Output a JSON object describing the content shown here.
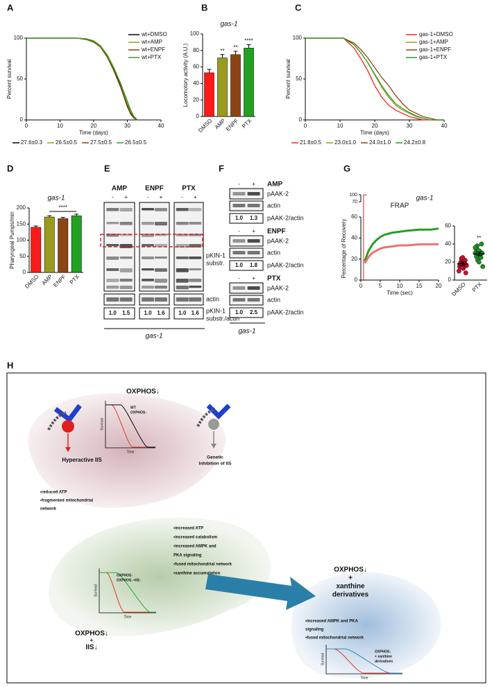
{
  "panel_letters": [
    "A",
    "B",
    "C",
    "D",
    "E",
    "F",
    "G",
    "H"
  ],
  "chart_data": [
    {
      "type": "line",
      "xlabel": "Time (days)",
      "ylabel": "Percent survival",
      "x": [
        0,
        15,
        18,
        20,
        22,
        24,
        26,
        28,
        30,
        31,
        32,
        33
      ],
      "xlim": [
        0,
        40
      ],
      "xticks": [
        0,
        10,
        20,
        30,
        40
      ],
      "ylim": [
        0,
        100
      ],
      "yticks": [
        0,
        50,
        100
      ],
      "legend": "upper right",
      "series": [
        {
          "name": "wt+DMSO",
          "color": "#000000",
          "values": [
            100,
            100,
            99,
            96,
            90,
            78,
            62,
            42,
            18,
            8,
            3,
            0
          ]
        },
        {
          "name": "wt+AMP",
          "color": "#9a9a1e",
          "values": [
            100,
            100,
            99,
            97,
            91,
            80,
            64,
            44,
            20,
            10,
            4,
            0
          ]
        },
        {
          "name": "wt+ENPF",
          "color": "#8b4513",
          "values": [
            100,
            100,
            98,
            95,
            89,
            77,
            60,
            40,
            16,
            7,
            2,
            0
          ]
        },
        {
          "name": "wt+PTX",
          "color": "#2ca02c",
          "values": [
            100,
            100,
            99,
            96,
            90,
            79,
            63,
            45,
            23,
            12,
            4,
            0
          ]
        }
      ],
      "annotations": [
        "27.6±0.3",
        "26.5±0.5",
        "27.5±0.5",
        "26.5±0.5"
      ]
    },
    {
      "type": "bar",
      "title": "gas-1",
      "ylabel": "Locomotory activity (A.U.)",
      "categories": [
        "DMSO",
        "AMP",
        "ENPF",
        "PTX"
      ],
      "values": [
        53,
        71,
        75,
        83
      ],
      "errors": [
        4,
        4,
        4,
        4
      ],
      "colors": [
        "#ff1a1a",
        "#9a9a1e",
        "#8b4513",
        "#22a022"
      ],
      "significance": [
        null,
        "**",
        "**",
        "****"
      ],
      "ylim": [
        0,
        100
      ],
      "yticks": [
        0,
        20,
        40,
        60,
        80,
        100
      ]
    },
    {
      "type": "line",
      "xlabel": "Time (days)",
      "ylabel": "Percent survival",
      "x": [
        0,
        11,
        14,
        16,
        18,
        20,
        22,
        24,
        26,
        28,
        30,
        32,
        34,
        36,
        38,
        40
      ],
      "xlim": [
        0,
        40
      ],
      "xticks": [
        0,
        10,
        20,
        30,
        40
      ],
      "ylim": [
        0,
        100
      ],
      "yticks": [
        0,
        50,
        100
      ],
      "legend": "upper right",
      "series": [
        {
          "name": "gas-1+DMSO",
          "color": "#ff2020",
          "values": [
            100,
            100,
            88,
            75,
            60,
            42,
            28,
            18,
            12,
            8,
            4,
            2,
            0,
            0,
            0,
            0
          ]
        },
        {
          "name": "gas-1+AMP",
          "color": "#9a9a1e",
          "values": [
            100,
            100,
            92,
            82,
            70,
            55,
            40,
            28,
            18,
            12,
            8,
            4,
            2,
            0,
            0,
            0
          ]
        },
        {
          "name": "gas-1+ENPF",
          "color": "#8b4513",
          "values": [
            100,
            100,
            94,
            86,
            76,
            64,
            52,
            42,
            30,
            20,
            12,
            8,
            4,
            2,
            0,
            0
          ]
        },
        {
          "name": "gas-1+PTX",
          "color": "#22a022",
          "values": [
            100,
            100,
            92,
            82,
            70,
            56,
            42,
            30,
            20,
            14,
            9,
            5,
            2,
            0,
            0,
            0
          ]
        }
      ],
      "annotations": [
        "21.8±0.5",
        "23.0±1.0",
        "24.0±1.0",
        "24.2±0.8"
      ]
    },
    {
      "type": "bar",
      "title": "gas-1",
      "ylabel": "Pharyngeal Pumps/min",
      "categories": [
        "DMSO",
        "AMP",
        "ENPF",
        "PTX"
      ],
      "values": [
        140,
        172,
        167,
        176
      ],
      "errors": [
        4,
        4,
        4,
        5
      ],
      "colors": [
        "#ff1a1a",
        "#9a9a1e",
        "#8b4513",
        "#22a022"
      ],
      "significance": "****",
      "ylim": [
        0,
        200
      ],
      "yticks": [
        0,
        50,
        100,
        150,
        200
      ]
    },
    {
      "type": "line",
      "title": "FRAP",
      "xlabel": "Time (sec)",
      "ylabel": "Percentage of Recovery",
      "x": [
        1,
        2,
        3,
        4,
        5,
        6,
        8,
        10,
        12,
        15,
        18,
        20
      ],
      "xlim": [
        0,
        20
      ],
      "xticks": [
        0,
        5,
        10,
        15,
        20
      ],
      "ylim": [
        0,
        60
      ],
      "yticks": [
        0,
        20,
        40,
        60
      ],
      "ybreak_ticks": [
        70,
        100
      ],
      "series": [
        {
          "color": "#22a022",
          "values": [
            18,
            28,
            34,
            38,
            41,
            43,
            45,
            46,
            47,
            48,
            48,
            49
          ]
        },
        {
          "color": "#f07070",
          "values": [
            16,
            22,
            26,
            28,
            30,
            31,
            32,
            33,
            33,
            34,
            34,
            34
          ]
        }
      ]
    },
    {
      "type": "dot",
      "categories": [
        "DMSO",
        "PTX"
      ],
      "colors": [
        "#c8102e",
        "#1f8f2a"
      ],
      "points": [
        [
          10,
          13,
          15,
          17,
          18,
          19,
          20,
          22,
          24,
          8,
          14,
          16,
          25
        ],
        [
          30,
          32,
          35,
          28,
          26,
          25,
          38,
          40,
          22,
          30,
          33,
          15,
          20,
          36
        ]
      ],
      "means": [
        18,
        29
      ],
      "sems": [
        2,
        2
      ],
      "significance": [
        null,
        "**"
      ],
      "ylim": [
        0,
        60
      ],
      "yticks": [
        0,
        20,
        40,
        60
      ]
    }
  ],
  "panel_g_title": "gas-1",
  "blot_e": {
    "groups": [
      {
        "name": "AMP",
        "lanes": [
          "-",
          "+"
        ],
        "ratios": [
          "1.0",
          "1.5"
        ]
      },
      {
        "name": "ENPF",
        "lanes": [
          "-",
          "+"
        ],
        "ratios": [
          "1.0",
          "1.6"
        ]
      },
      {
        "name": "PTX",
        "lanes": [
          "-",
          "+"
        ],
        "ratios": [
          "1.0",
          "1.6"
        ]
      }
    ],
    "labels": {
      "band": [
        "pKIN-1",
        "substr."
      ],
      "actin": "actin",
      "ratio": [
        "pKIN-1",
        "substr./actin"
      ]
    },
    "strain": "gas-1"
  },
  "blot_f": {
    "groups": [
      {
        "name": "AMP",
        "lanes": [
          "-",
          "+"
        ],
        "ratios": [
          "1.0",
          "1.3"
        ]
      },
      {
        "name": "ENPF",
        "lanes": [
          "-",
          "+"
        ],
        "ratios": [
          "1.0",
          "1.8"
        ]
      },
      {
        "name": "PTX",
        "lanes": [
          "-",
          "+"
        ],
        "ratios": [
          "1.0",
          "2.5"
        ]
      }
    ],
    "labels": {
      "band": "pAAK-2",
      "actin": "actin",
      "ratio": "pAAK-2/actin"
    },
    "strain": "gas-1"
  },
  "diagram_h": {
    "oxphos_top": "OXPHOS↓",
    "plot1": {
      "legend": [
        "WT",
        "OXPHOS↓"
      ],
      "ylabel": "Survival",
      "xlabel": "Time"
    },
    "hyperactive": "Hyperactive IIS",
    "left_bullets": [
      "•reduced ATP",
      "•fragmented mitochondrial",
      "network"
    ],
    "genetic": [
      "Genetic",
      "Inhibition of IIS"
    ],
    "middle_bullets": [
      "•increased ATP",
      "•increased catabolism",
      "•increased AMPK and",
      "PKA signaling",
      "•fused mitochondrial network",
      "•xanthine accumulation"
    ],
    "plot2": {
      "legend": [
        "OXPHOS↓",
        "OXPHOS↓+IIS↓"
      ],
      "ylabel": "Survival",
      "xlabel": "Time"
    },
    "oxphos_iis": [
      "OXPHOS↓",
      "+",
      "IIS↓"
    ],
    "oxphos_xanthine": [
      "OXPHOS↓",
      "+",
      "xanthine",
      "derivatives"
    ],
    "right_bullets": [
      "•increased AMPK and PKA",
      "signaling",
      "•fused mitochondrial network"
    ],
    "plot3": {
      "legend": [
        "OXPHOS↓",
        "+ xanthine",
        "derivatives"
      ],
      "ylabel": "Survival",
      "xlabel": "Time"
    }
  }
}
